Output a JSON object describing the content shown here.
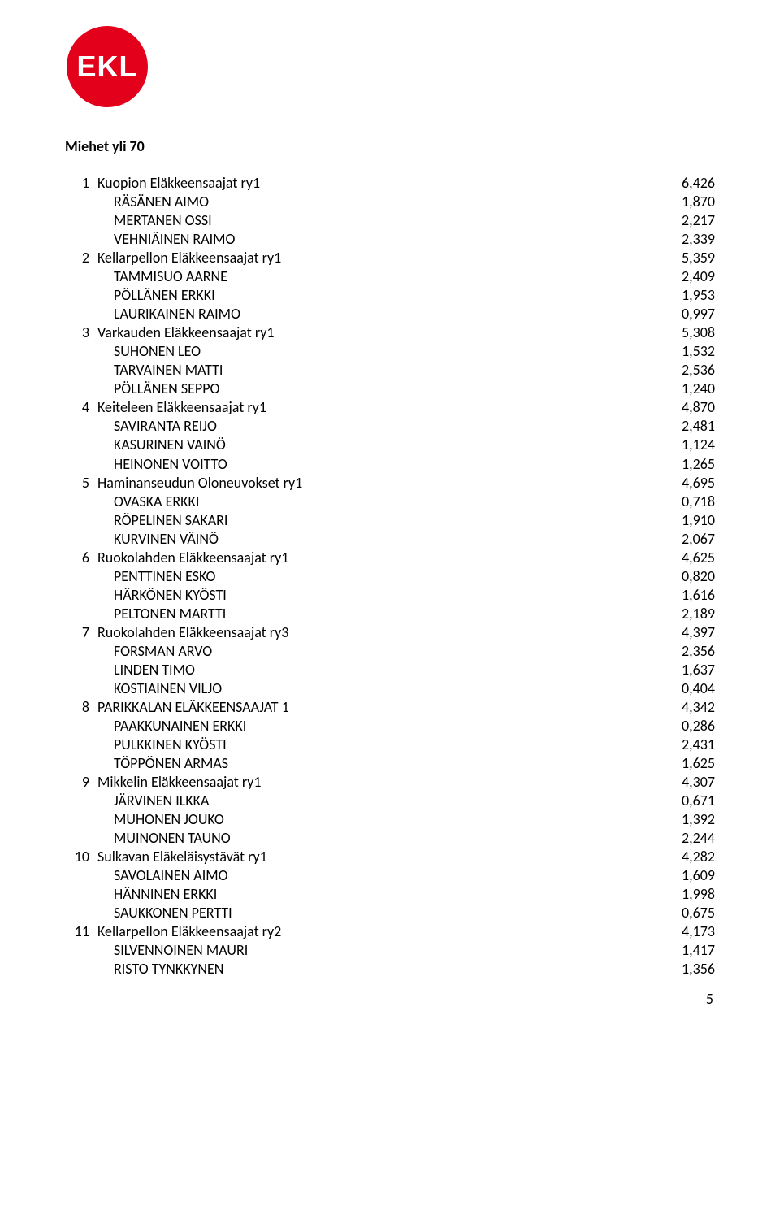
{
  "logo": {
    "text": "EKL",
    "circle_color": "#e2001a",
    "text_color": "#ffffff",
    "radius": 50
  },
  "heading": "Miehet yli 70",
  "page_number": "5",
  "column_widths": {
    "rank": 40,
    "score": 80,
    "member_indent": 20
  },
  "font": {
    "family": "Calibri",
    "size_pt": 18,
    "heading_weight": "bold"
  },
  "colors": {
    "text": "#000000",
    "background": "#ffffff"
  },
  "results": [
    {
      "rank": "1",
      "team": "Kuopion Eläkkeensaajat ry1",
      "score": "6,426",
      "members": [
        {
          "name": "RÄSÄNEN AIMO",
          "score": "1,870"
        },
        {
          "name": "MERTANEN OSSI",
          "score": "2,217"
        },
        {
          "name": "VEHNIÄINEN RAIMO",
          "score": "2,339"
        }
      ]
    },
    {
      "rank": "2",
      "team": "Kellarpellon Eläkkeensaajat ry1",
      "score": "5,359",
      "members": [
        {
          "name": "TAMMISUO AARNE",
          "score": "2,409"
        },
        {
          "name": "PÖLLÄNEN ERKKI",
          "score": "1,953"
        },
        {
          "name": "LAURIKAINEN RAIMO",
          "score": "0,997"
        }
      ]
    },
    {
      "rank": "3",
      "team": "Varkauden Eläkkeensaajat ry1",
      "score": "5,308",
      "members": [
        {
          "name": "SUHONEN LEO",
          "score": "1,532"
        },
        {
          "name": "TARVAINEN MATTI",
          "score": "2,536"
        },
        {
          "name": "PÖLLÄNEN SEPPO",
          "score": "1,240"
        }
      ]
    },
    {
      "rank": "4",
      "team": "Keiteleen Eläkkeensaajat ry1",
      "score": "4,870",
      "members": [
        {
          "name": "SAVIRANTA REIJO",
          "score": "2,481"
        },
        {
          "name": "KASURINEN VAINÖ",
          "score": "1,124"
        },
        {
          "name": "HEINONEN VOITTO",
          "score": "1,265"
        }
      ]
    },
    {
      "rank": "5",
      "team": "Haminanseudun Oloneuvokset ry1",
      "score": "4,695",
      "members": [
        {
          "name": "OVASKA ERKKI",
          "score": "0,718"
        },
        {
          "name": "RÖPELINEN SAKARI",
          "score": "1,910"
        },
        {
          "name": "KURVINEN VÄINÖ",
          "score": "2,067"
        }
      ]
    },
    {
      "rank": "6",
      "team": "Ruokolahden Eläkkeensaajat ry1",
      "score": "4,625",
      "members": [
        {
          "name": "PENTTINEN ESKO",
          "score": "0,820"
        },
        {
          "name": "HÄRKÖNEN KYÖSTI",
          "score": "1,616"
        },
        {
          "name": "PELTONEN MARTTI",
          "score": "2,189"
        }
      ]
    },
    {
      "rank": "7",
      "team": "Ruokolahden Eläkkeensaajat ry3",
      "score": "4,397",
      "members": [
        {
          "name": "FORSMAN ARVO",
          "score": "2,356"
        },
        {
          "name": "LINDEN TIMO",
          "score": "1,637"
        },
        {
          "name": "KOSTIAINEN VILJO",
          "score": "0,404"
        }
      ]
    },
    {
      "rank": "8",
      "team": "PARIKKALAN ELÄKKEENSAAJAT 1",
      "score": "4,342",
      "members": [
        {
          "name": "PAAKKUNAINEN ERKKI",
          "score": "0,286"
        },
        {
          "name": "PULKKINEN KYÖSTI",
          "score": "2,431"
        },
        {
          "name": "TÖPPÖNEN ARMAS",
          "score": "1,625"
        }
      ]
    },
    {
      "rank": "9",
      "team": "Mikkelin Eläkkeensaajat ry1",
      "score": "4,307",
      "members": [
        {
          "name": "JÄRVINEN ILKKA",
          "score": "0,671"
        },
        {
          "name": "MUHONEN JOUKO",
          "score": "1,392"
        },
        {
          "name": "MUINONEN TAUNO",
          "score": "2,244"
        }
      ]
    },
    {
      "rank": "10",
      "team": "Sulkavan Eläkeläisystävät ry1",
      "score": "4,282",
      "members": [
        {
          "name": "SAVOLAINEN AIMO",
          "score": "1,609"
        },
        {
          "name": "HÄNNINEN ERKKI",
          "score": "1,998"
        },
        {
          "name": "SAUKKONEN PERTTI",
          "score": "0,675"
        }
      ]
    },
    {
      "rank": "11",
      "team": "Kellarpellon Eläkkeensaajat ry2",
      "score": "4,173",
      "members": [
        {
          "name": "SILVENNOINEN MAURI",
          "score": "1,417"
        },
        {
          "name": "RISTO TYNKKYNEN",
          "score": "1,356"
        }
      ]
    }
  ]
}
